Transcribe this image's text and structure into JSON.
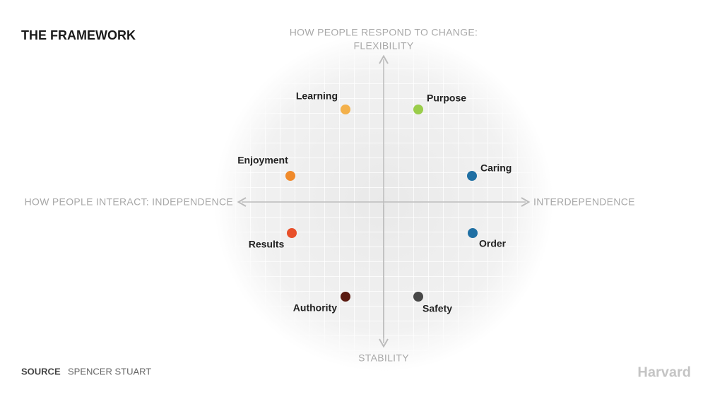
{
  "title": "THE FRAMEWORK",
  "axes": {
    "top": [
      "HOW PEOPLE RESPOND TO CHANGE:",
      "FLEXIBILITY"
    ],
    "left": "HOW PEOPLE INTERACT: INDEPENDENCE",
    "right": "INTERDEPENDENCE",
    "bottom": "STABILITY"
  },
  "nodes": [
    {
      "label": "Learning",
      "color": "#f3b04a"
    },
    {
      "label": "Purpose",
      "color": "#9acd4a"
    },
    {
      "label": "Enjoyment",
      "color": "#f08a2a"
    },
    {
      "label": "Caring",
      "color": "#1f6fa3"
    },
    {
      "label": "Results",
      "color": "#e8502a"
    },
    {
      "label": "Order",
      "color": "#1f6fa3"
    },
    {
      "label": "Authority",
      "color": "#5a1a10"
    },
    {
      "label": "Safety",
      "color": "#474747"
    }
  ],
  "source": {
    "label": "SOURCE",
    "text": "SPENCER STUART"
  },
  "brand": "Harvard"
}
